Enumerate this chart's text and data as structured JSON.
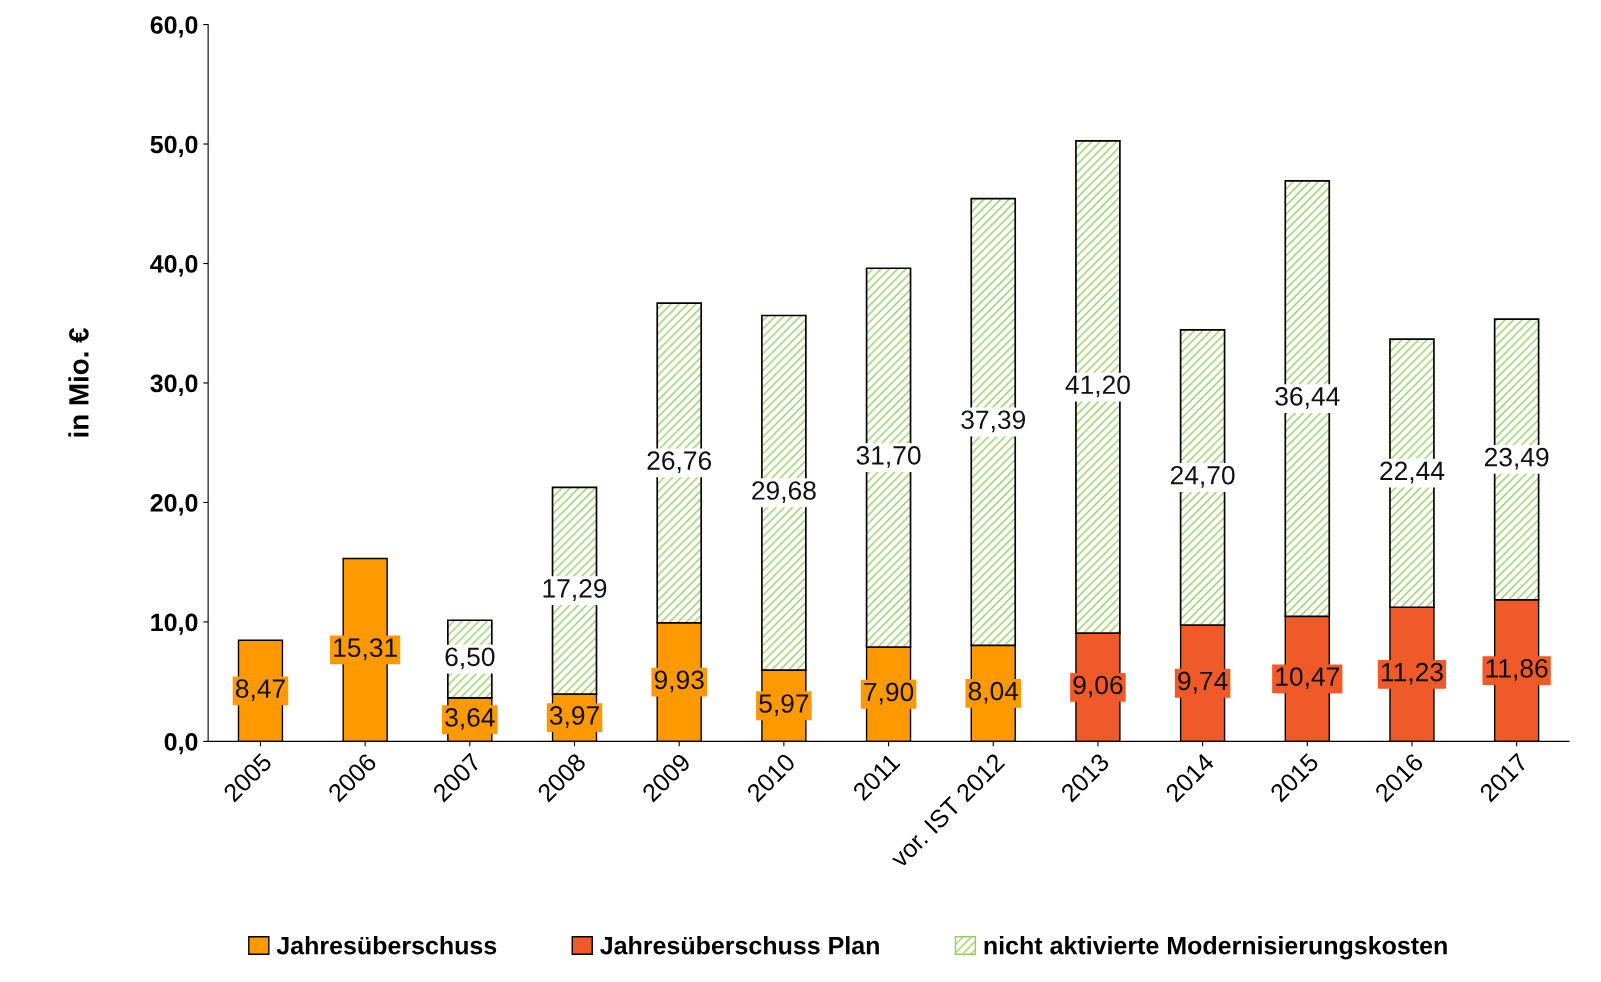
{
  "chart_data": {
    "type": "bar",
    "stacked": true,
    "ylabel": "in Mio. €",
    "legend": "bottom",
    "grid": false,
    "categories": [
      "2005",
      "2006",
      "2007",
      "2008",
      "2009",
      "2010",
      "2011",
      "vor. IST 2012",
      "2013",
      "2014",
      "2015",
      "2016",
      "2017"
    ],
    "ylim": [
      0,
      60
    ],
    "yticks": [
      {
        "value": 0,
        "label": "0,0"
      },
      {
        "value": 10,
        "label": "10,0"
      },
      {
        "value": 20,
        "label": "20,0"
      },
      {
        "value": 30,
        "label": "30,0"
      },
      {
        "value": 40,
        "label": "40,0"
      },
      {
        "value": 50,
        "label": "50,0"
      },
      {
        "value": 60,
        "label": "60,0"
      }
    ],
    "series": [
      {
        "name": "Jahresüberschuss",
        "color": "#ff9900",
        "values": [
          8.47,
          15.31,
          3.64,
          3.97,
          9.93,
          5.97,
          7.9,
          8.04,
          null,
          null,
          null,
          null,
          null
        ],
        "value_labels": [
          "8,47",
          "15,31",
          "3,64",
          "3,97",
          "9,93",
          "5,97",
          "7,90",
          "8,04",
          null,
          null,
          null,
          null,
          null
        ]
      },
      {
        "name": "Jahresüberschuss Plan",
        "color": "#f05a28",
        "values": [
          null,
          null,
          null,
          null,
          null,
          null,
          null,
          null,
          9.06,
          9.74,
          10.47,
          11.23,
          11.86
        ],
        "value_labels": [
          null,
          null,
          null,
          null,
          null,
          null,
          null,
          null,
          "9,06",
          "9,74",
          "10,47",
          "11,23",
          "11,86"
        ]
      },
      {
        "name": "nicht aktivierte Modernisierungskosten",
        "color": "#99cc66",
        "values": [
          null,
          null,
          6.5,
          17.29,
          26.76,
          29.68,
          31.7,
          37.39,
          41.2,
          24.7,
          36.44,
          22.44,
          23.49
        ],
        "value_labels": [
          null,
          null,
          "6,50",
          "17,29",
          "26,76",
          "29,68",
          "31,70",
          "37,39",
          "41,20",
          "24,70",
          "36,44",
          "22,44",
          "23,49"
        ]
      }
    ]
  }
}
